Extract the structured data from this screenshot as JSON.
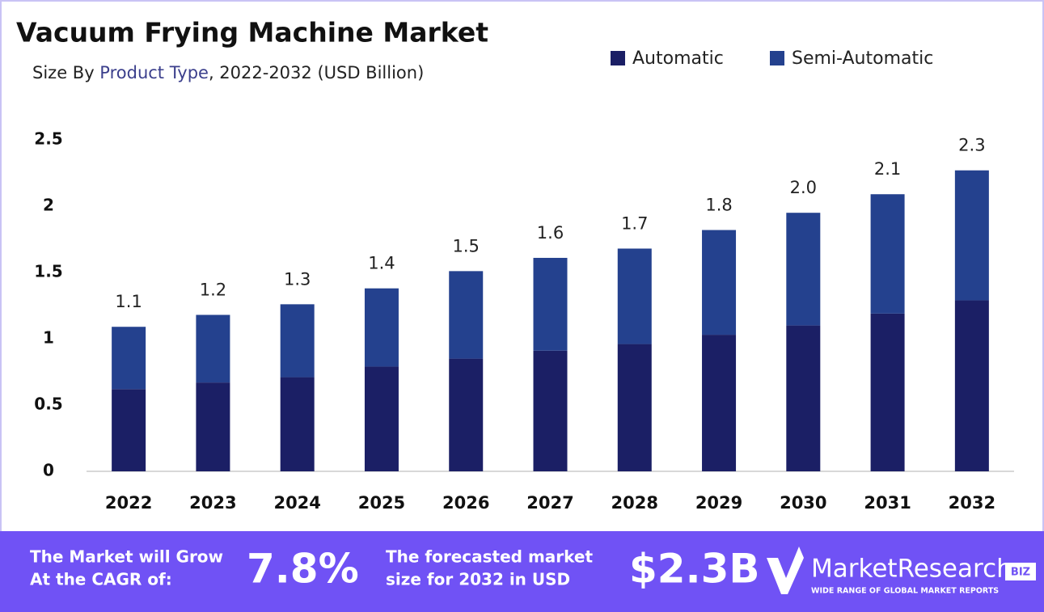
{
  "chart_data": {
    "type": "stacked_bar",
    "title": "Vacuum Frying Machine Market",
    "subtitle": {
      "prefix": "Size By ",
      "highlight": "Product Type",
      "suffix": ", 2022-2032 (USD Billion)"
    },
    "categories": [
      "2022",
      "2023",
      "2024",
      "2025",
      "2026",
      "2027",
      "2028",
      "2029",
      "2030",
      "2031",
      "2032"
    ],
    "series": [
      {
        "name": "Automatic",
        "color": "#1b1f65",
        "values": [
          0.62,
          0.67,
          0.71,
          0.79,
          0.85,
          0.91,
          0.96,
          1.03,
          1.1,
          1.19,
          1.29
        ]
      },
      {
        "name": "Semi-Automatic",
        "color": "#24418e",
        "values": [
          0.47,
          0.51,
          0.55,
          0.59,
          0.66,
          0.7,
          0.72,
          0.79,
          0.85,
          0.9,
          0.98
        ]
      }
    ],
    "totals": [
      1.09,
      1.18,
      1.26,
      1.38,
      1.51,
      1.61,
      1.68,
      1.82,
      1.95,
      2.09,
      2.27
    ],
    "total_labels": [
      "1.1",
      "1.2",
      "1.3",
      "1.4",
      "1.5",
      "1.6",
      "1.7",
      "1.8",
      "2.0",
      "2.1",
      "2.3"
    ],
    "ylim": [
      0,
      2.5
    ],
    "yticks": [
      0,
      0.5,
      1,
      1.5,
      2,
      2.5
    ],
    "legend": "top-right"
  },
  "footer": {
    "cagr_text": [
      "The Market will Grow",
      "At the CAGR of:"
    ],
    "cagr_value": "7.8%",
    "forecast_text": [
      "The forecasted market",
      "size for 2032 in USD"
    ],
    "forecast_value": "$2.3B",
    "logo": "MarketResearch",
    "logo_badge": "BIZ",
    "logo_tagline": "WIDE RANGE OF GLOBAL MARKET REPORTS"
  }
}
